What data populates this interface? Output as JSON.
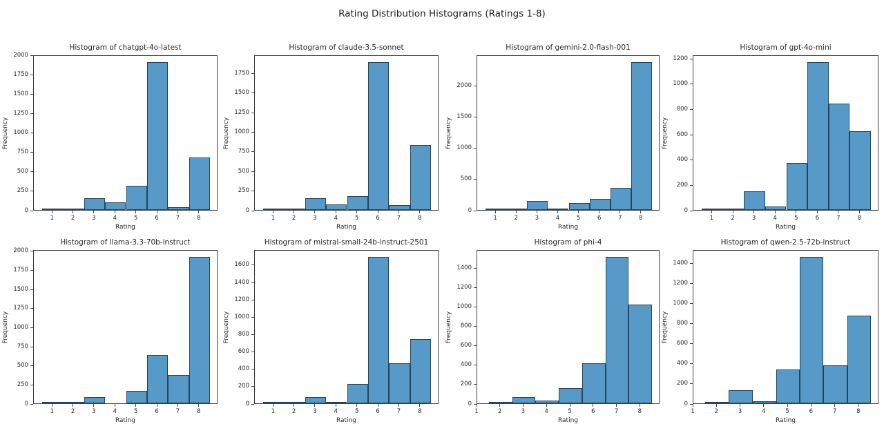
{
  "figure": {
    "title": "Rating Distribution Histograms (Ratings 1-8)",
    "xlabel": "Rating",
    "ylabel": "Frequency",
    "colors": {
      "bar_fill": "#5799c7",
      "bar_edge": "#24455e",
      "spine": "#404040",
      "text": "#262626"
    }
  },
  "chart_data": [
    {
      "type": "bar",
      "title": "Histogram of chatgpt-4o-latest",
      "xlabel": "Rating",
      "ylabel": "Frequency",
      "categories": [
        1,
        2,
        3,
        4,
        5,
        6,
        7,
        8
      ],
      "values": [
        5,
        5,
        155,
        95,
        315,
        1905,
        35,
        680
      ],
      "xticks": [
        1,
        2,
        3,
        4,
        5,
        6,
        7,
        8
      ],
      "yticks": [
        0,
        250,
        500,
        750,
        1000,
        1250,
        1500,
        1750,
        2000
      ],
      "xlim": [
        0.1,
        8.9
      ],
      "ylim": [
        0,
        2000.3
      ],
      "bin_width": 1
    },
    {
      "type": "bar",
      "title": "Histogram of claude-3.5-sonnet",
      "xlabel": "Rating",
      "ylabel": "Frequency",
      "categories": [
        1,
        2,
        3,
        4,
        5,
        6,
        7,
        8
      ],
      "values": [
        5,
        15,
        150,
        70,
        175,
        1890,
        60,
        830
      ],
      "xticks": [
        1,
        2,
        3,
        4,
        5,
        6,
        7,
        8
      ],
      "yticks": [
        0,
        250,
        500,
        750,
        1000,
        1250,
        1500,
        1750
      ],
      "xlim": [
        0.1,
        8.9
      ],
      "ylim": [
        0,
        1984.5
      ],
      "bin_width": 1
    },
    {
      "type": "bar",
      "title": "Histogram of gemini-2.0-flash-001",
      "xlabel": "Rating",
      "ylabel": "Frequency",
      "categories": [
        1,
        2,
        3,
        4,
        5,
        6,
        7,
        8
      ],
      "values": [
        8,
        8,
        140,
        25,
        115,
        180,
        360,
        2380
      ],
      "xticks": [
        1,
        2,
        3,
        4,
        5,
        6,
        7,
        8
      ],
      "yticks": [
        0,
        500,
        1000,
        1500,
        2000
      ],
      "xlim": [
        0.1,
        8.9
      ],
      "ylim": [
        0,
        2499
      ],
      "bin_width": 1
    },
    {
      "type": "bar",
      "title": "Histogram of gpt-4o-mini",
      "xlabel": "Rating",
      "ylabel": "Frequency",
      "categories": [
        1,
        2,
        3,
        4,
        5,
        6,
        7,
        8
      ],
      "values": [
        8,
        12,
        148,
        30,
        370,
        1170,
        843,
        620
      ],
      "xticks": [
        1,
        2,
        3,
        4,
        5,
        6,
        7,
        8
      ],
      "yticks": [
        0,
        200,
        400,
        600,
        800,
        1000,
        1200
      ],
      "xlim": [
        0.1,
        8.9
      ],
      "ylim": [
        0,
        1228.5
      ],
      "bin_width": 1
    },
    {
      "type": "bar",
      "title": "Histogram of llama-3.3-70b-instruct",
      "xlabel": "Rating",
      "ylabel": "Frequency",
      "categories": [
        1,
        2,
        3,
        4,
        5,
        6,
        7,
        8
      ],
      "values": [
        8,
        15,
        80,
        0,
        160,
        635,
        375,
        1920
      ],
      "xticks": [
        1,
        2,
        3,
        4,
        5,
        6,
        7,
        8
      ],
      "yticks": [
        0,
        250,
        500,
        750,
        1000,
        1250,
        1500,
        1750,
        2000
      ],
      "xlim": [
        0.1,
        8.9
      ],
      "ylim": [
        0,
        2016
      ],
      "bin_width": 1
    },
    {
      "type": "bar",
      "title": "Histogram of mistral-small-24b-instruct-2501",
      "xlabel": "Rating",
      "ylabel": "Frequency",
      "categories": [
        1,
        2,
        3,
        4,
        5,
        6,
        7,
        8
      ],
      "values": [
        5,
        5,
        75,
        15,
        225,
        1690,
        465,
        740
      ],
      "xticks": [
        1,
        2,
        3,
        4,
        5,
        6,
        7,
        8
      ],
      "yticks": [
        0,
        200,
        400,
        600,
        800,
        1000,
        1200,
        1400,
        1600
      ],
      "xlim": [
        0.1,
        8.9
      ],
      "ylim": [
        0,
        1774.5
      ],
      "bin_width": 1
    },
    {
      "type": "bar",
      "title": "Histogram of phi-4",
      "xlabel": "Rating",
      "ylabel": "Frequency",
      "categories": [
        2,
        3,
        4,
        5,
        6,
        7,
        8
      ],
      "values": [
        15,
        65,
        25,
        160,
        410,
        1510,
        1020
      ],
      "xticks": [
        1,
        2,
        3,
        4,
        5,
        6,
        7,
        8
      ],
      "yticks": [
        0,
        200,
        400,
        600,
        800,
        1000,
        1200,
        1400
      ],
      "xlim": [
        1.0,
        8.85
      ],
      "ylim": [
        0,
        1585.5
      ],
      "bin_width": 1
    },
    {
      "type": "bar",
      "title": "Histogram of qwen-2.5-72b-instruct",
      "xlabel": "Rating",
      "ylabel": "Frequency",
      "categories": [
        2,
        3,
        4,
        5,
        6,
        7,
        8
      ],
      "values": [
        5,
        130,
        20,
        340,
        1460,
        380,
        870
      ],
      "xticks": [
        1,
        2,
        3,
        4,
        5,
        6,
        7,
        8
      ],
      "yticks": [
        0,
        200,
        400,
        600,
        800,
        1000,
        1200,
        1400
      ],
      "xlim": [
        1.0,
        8.85
      ],
      "ylim": [
        0,
        1533
      ],
      "bin_width": 1
    }
  ]
}
